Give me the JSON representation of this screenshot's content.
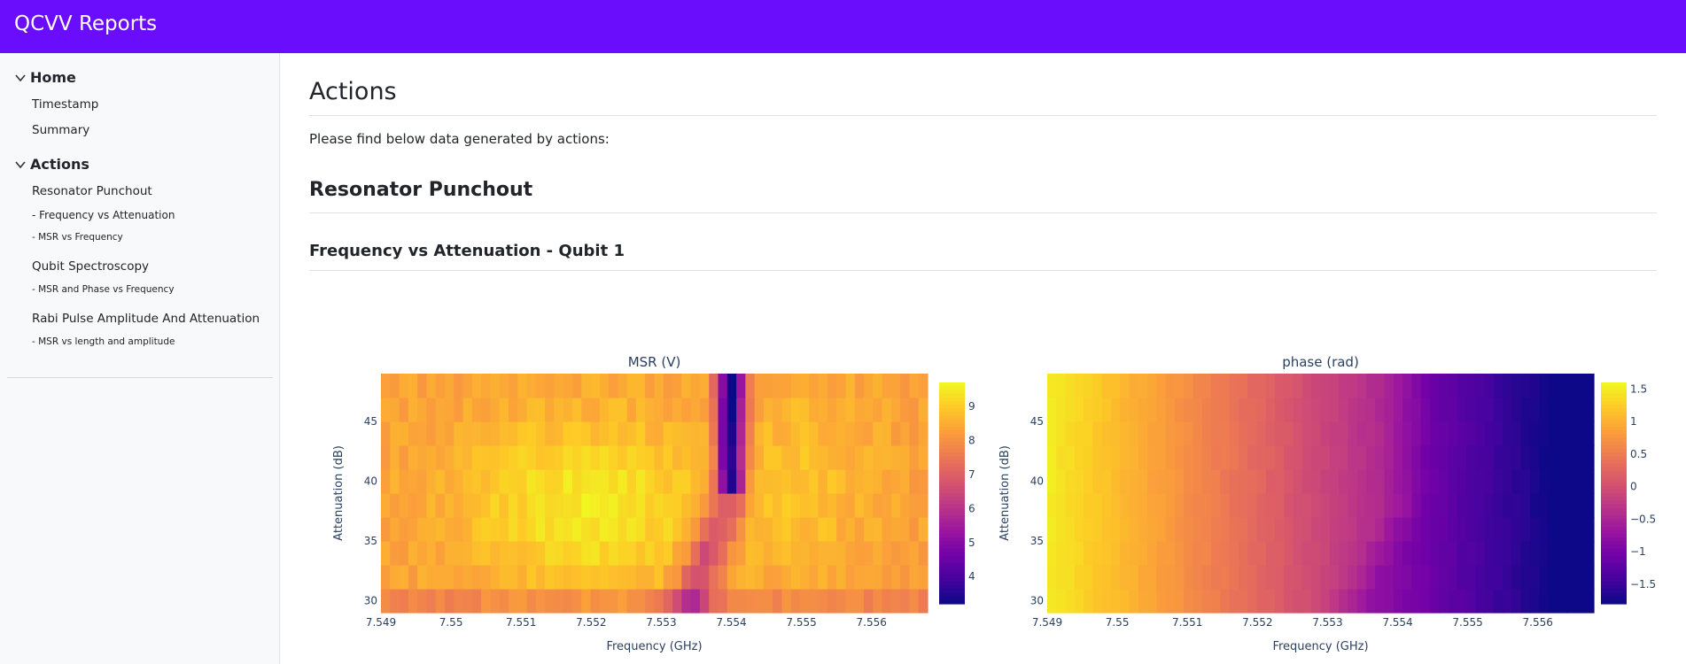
{
  "app": {
    "title": "QCVV Reports"
  },
  "sidebar": {
    "home": {
      "label": "Home",
      "items": [
        "Timestamp",
        "Summary"
      ]
    },
    "actions": {
      "label": "Actions",
      "groups": [
        {
          "label": "Resonator Punchout",
          "subs": [
            "- Frequency vs Attenuation",
            "- MSR vs Frequency"
          ]
        },
        {
          "label": "Qubit Spectroscopy",
          "subs": [
            "- MSR and Phase vs Frequency"
          ]
        },
        {
          "label": "Rabi Pulse Amplitude And Attenuation",
          "subs": [
            "- MSR vs length and amplitude"
          ]
        }
      ]
    }
  },
  "main": {
    "title": "Actions",
    "intro": "Please find below data generated by actions:",
    "section": "Resonator Punchout",
    "subsection": "Frequency vs Attenuation - Qubit 1"
  },
  "colors": {
    "topbar": "#6a0dfd",
    "plasma": [
      "#0d0887",
      "#46039f",
      "#7201a8",
      "#9c179e",
      "#bd3786",
      "#d8576b",
      "#ed7953",
      "#fb9f3a",
      "#fdca26",
      "#f0f921"
    ]
  },
  "chart_data": [
    {
      "type": "heatmap",
      "title": "MSR (V)",
      "xlabel": "Frequency (GHz)",
      "ylabel": "Attenuation (dB)",
      "x_ticks": [
        "7.549",
        "7.55",
        "7.551",
        "7.552",
        "7.553",
        "7.554",
        "7.555",
        "7.556"
      ],
      "y_ticks": [
        "30",
        "35",
        "40",
        "45"
      ],
      "xlim": [
        7.549,
        7.5568
      ],
      "ylim": [
        29,
        49
      ],
      "colorbar_ticks": [
        "4",
        "5",
        "6",
        "7",
        "8",
        "9"
      ],
      "zlim": [
        3.2,
        9.7
      ],
      "colorscale": "plasma"
    },
    {
      "type": "heatmap",
      "title": "phase (rad)",
      "xlabel": "Frequency (GHz)",
      "ylabel": "Attenuation (dB)",
      "x_ticks": [
        "7.549",
        "7.55",
        "7.551",
        "7.552",
        "7.553",
        "7.554",
        "7.555",
        "7.556"
      ],
      "y_ticks": [
        "30",
        "35",
        "40",
        "45"
      ],
      "xlim": [
        7.549,
        7.5568
      ],
      "ylim": [
        29,
        49
      ],
      "colorbar_ticks": [
        "1.5",
        "1",
        "0.5",
        "0",
        "−0.5",
        "−1",
        "−1.5"
      ],
      "zlim": [
        -1.8,
        1.6
      ],
      "colorscale": "plasma"
    }
  ]
}
